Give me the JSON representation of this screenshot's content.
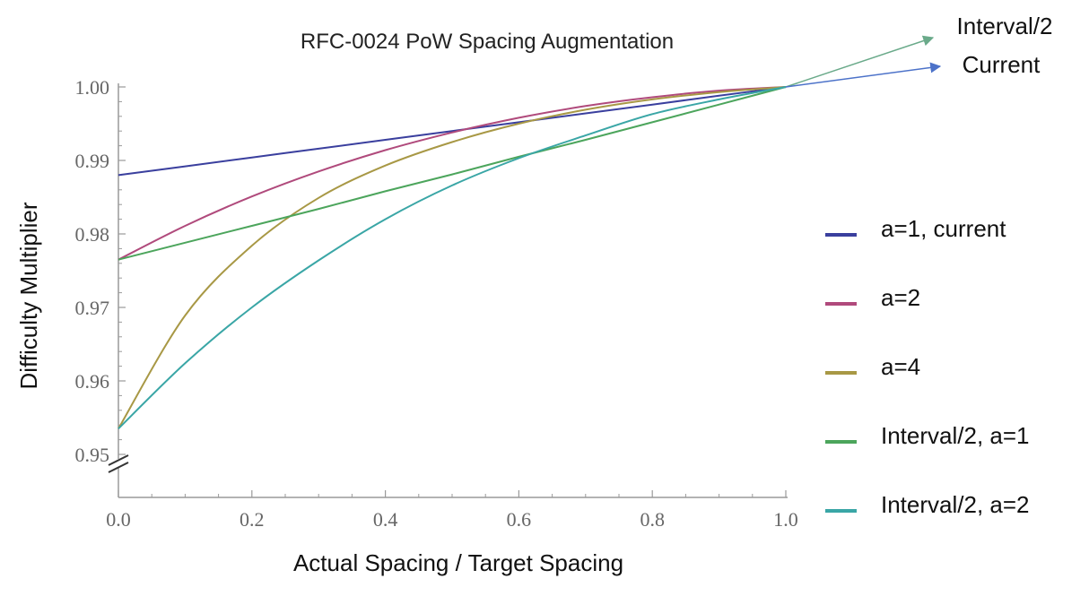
{
  "chart_data": {
    "type": "line",
    "title": "RFC-0024 PoW Spacing Augmentation",
    "xlabel": "Actual Spacing / Target Spacing",
    "ylabel": "Difficulty Multiplier",
    "xlim": [
      0,
      1
    ],
    "ylim": [
      0.95,
      1.0
    ],
    "x_ticks": [
      "0.0",
      "0.2",
      "0.4",
      "0.6",
      "0.8",
      "1.0"
    ],
    "y_ticks": [
      "0.95",
      "0.96",
      "0.97",
      "0.98",
      "0.99",
      "1.00"
    ],
    "axis_break": "y-axis below 0.95",
    "grid": false,
    "legend_position": "right",
    "x": [
      0.0,
      0.1,
      0.2,
      0.3,
      0.4,
      0.5,
      0.6,
      0.7,
      0.8,
      0.9,
      1.0
    ],
    "series": [
      {
        "name": "a=1, current",
        "color": "#3a3f9e",
        "values": [
          0.988,
          0.9892,
          0.9904,
          0.9916,
          0.9928,
          0.994,
          0.9952,
          0.9964,
          0.9976,
          0.9988,
          1.0
        ]
      },
      {
        "name": "a=2",
        "color": "#b04a7c",
        "values": [
          0.9765,
          0.9811,
          0.9851,
          0.9885,
          0.9914,
          0.9938,
          0.9958,
          0.9974,
          0.9986,
          0.9995,
          1.0
        ]
      },
      {
        "name": "a=4",
        "color": "#a89845",
        "values": [
          0.9535,
          0.9689,
          0.9784,
          0.9849,
          0.9893,
          0.9925,
          0.995,
          0.9969,
          0.9983,
          0.9993,
          1.0
        ]
      },
      {
        "name": "Interval/2, a=1",
        "color": "#4ca55c",
        "values": [
          0.9765,
          0.9788,
          0.9811,
          0.9834,
          0.9858,
          0.9881,
          0.9905,
          0.9928,
          0.9952,
          0.9976,
          1.0
        ]
      },
      {
        "name": "Interval/2, a=2",
        "color": "#3aa6a6",
        "values": [
          0.9535,
          0.9624,
          0.97,
          0.9764,
          0.982,
          0.9866,
          0.9903,
          0.9934,
          0.9963,
          0.9983,
          1.0
        ]
      }
    ],
    "annotations": [
      {
        "text": "Interval/2",
        "color": "#6aaa8a"
      },
      {
        "text": "Current",
        "color": "#4c72c9"
      }
    ]
  }
}
